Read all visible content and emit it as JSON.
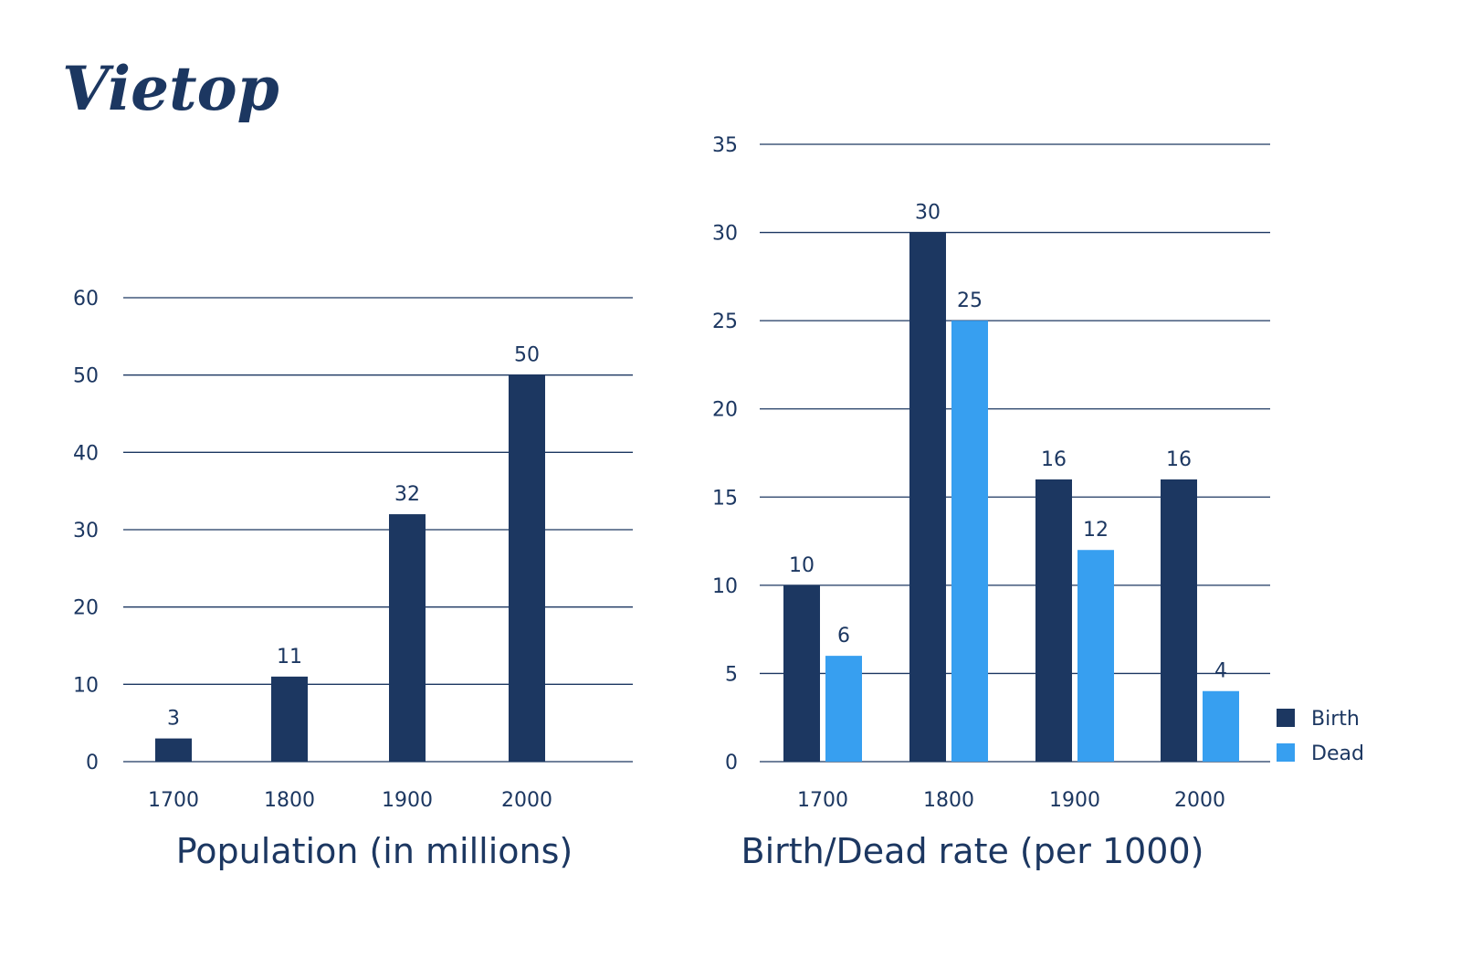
{
  "logo": {
    "text": "Vietop"
  },
  "colors": {
    "birth": "#1c3761",
    "dead": "#379ff0",
    "grid": "#1c3761",
    "text": "#1c3761"
  },
  "chart_data": [
    {
      "type": "bar",
      "title": "Population (in millions)",
      "categories": [
        "1700",
        "1800",
        "1900",
        "2000"
      ],
      "series": [
        {
          "values": [
            3,
            11,
            32,
            50
          ]
        }
      ],
      "ylim": [
        0,
        60
      ],
      "yticks": [
        0,
        10,
        20,
        30,
        40,
        50,
        60
      ],
      "grid": true
    },
    {
      "type": "bar",
      "title": "Birth/Dead rate (per 1000)",
      "categories": [
        "1700",
        "1800",
        "1900",
        "2000"
      ],
      "series": [
        {
          "name": "Birth",
          "values": [
            10,
            30,
            16,
            16
          ]
        },
        {
          "name": "Dead",
          "values": [
            6,
            25,
            12,
            4
          ]
        }
      ],
      "ylim": [
        0,
        35
      ],
      "yticks": [
        0,
        5,
        10,
        15,
        20,
        25,
        30,
        35
      ],
      "grid": true,
      "legend": "right"
    }
  ]
}
